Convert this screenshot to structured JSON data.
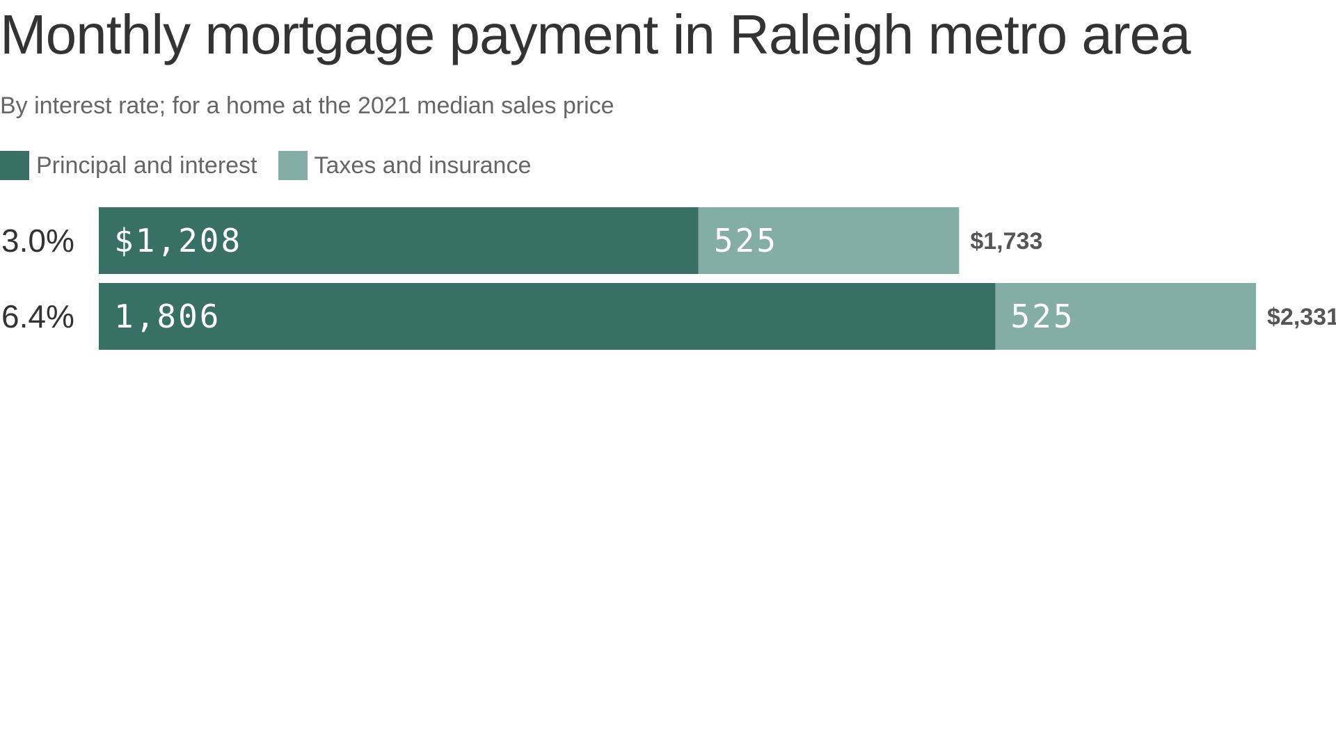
{
  "chart_data": {
    "type": "bar",
    "orientation": "horizontal",
    "stacked": true,
    "title": "Monthly mortgage payment in Raleigh metro area",
    "subtitle": "By interest rate; for a home at the 2021 median sales price",
    "categories": [
      "3.0%",
      "6.4%"
    ],
    "series": [
      {
        "name": "Principal and interest",
        "values": [
          1208,
          1806
        ],
        "labels": [
          "$1,208",
          "1,806"
        ],
        "color": "#387066"
      },
      {
        "name": "Taxes and insurance",
        "values": [
          525,
          525
        ],
        "labels": [
          "525",
          "525"
        ],
        "color": "#84ada6"
      }
    ],
    "totals": [
      1733,
      2331
    ],
    "total_labels": [
      "$1,733",
      "$2,331"
    ],
    "xlim": [
      0,
      2331
    ],
    "grid": false,
    "legend_position": "top-left"
  }
}
